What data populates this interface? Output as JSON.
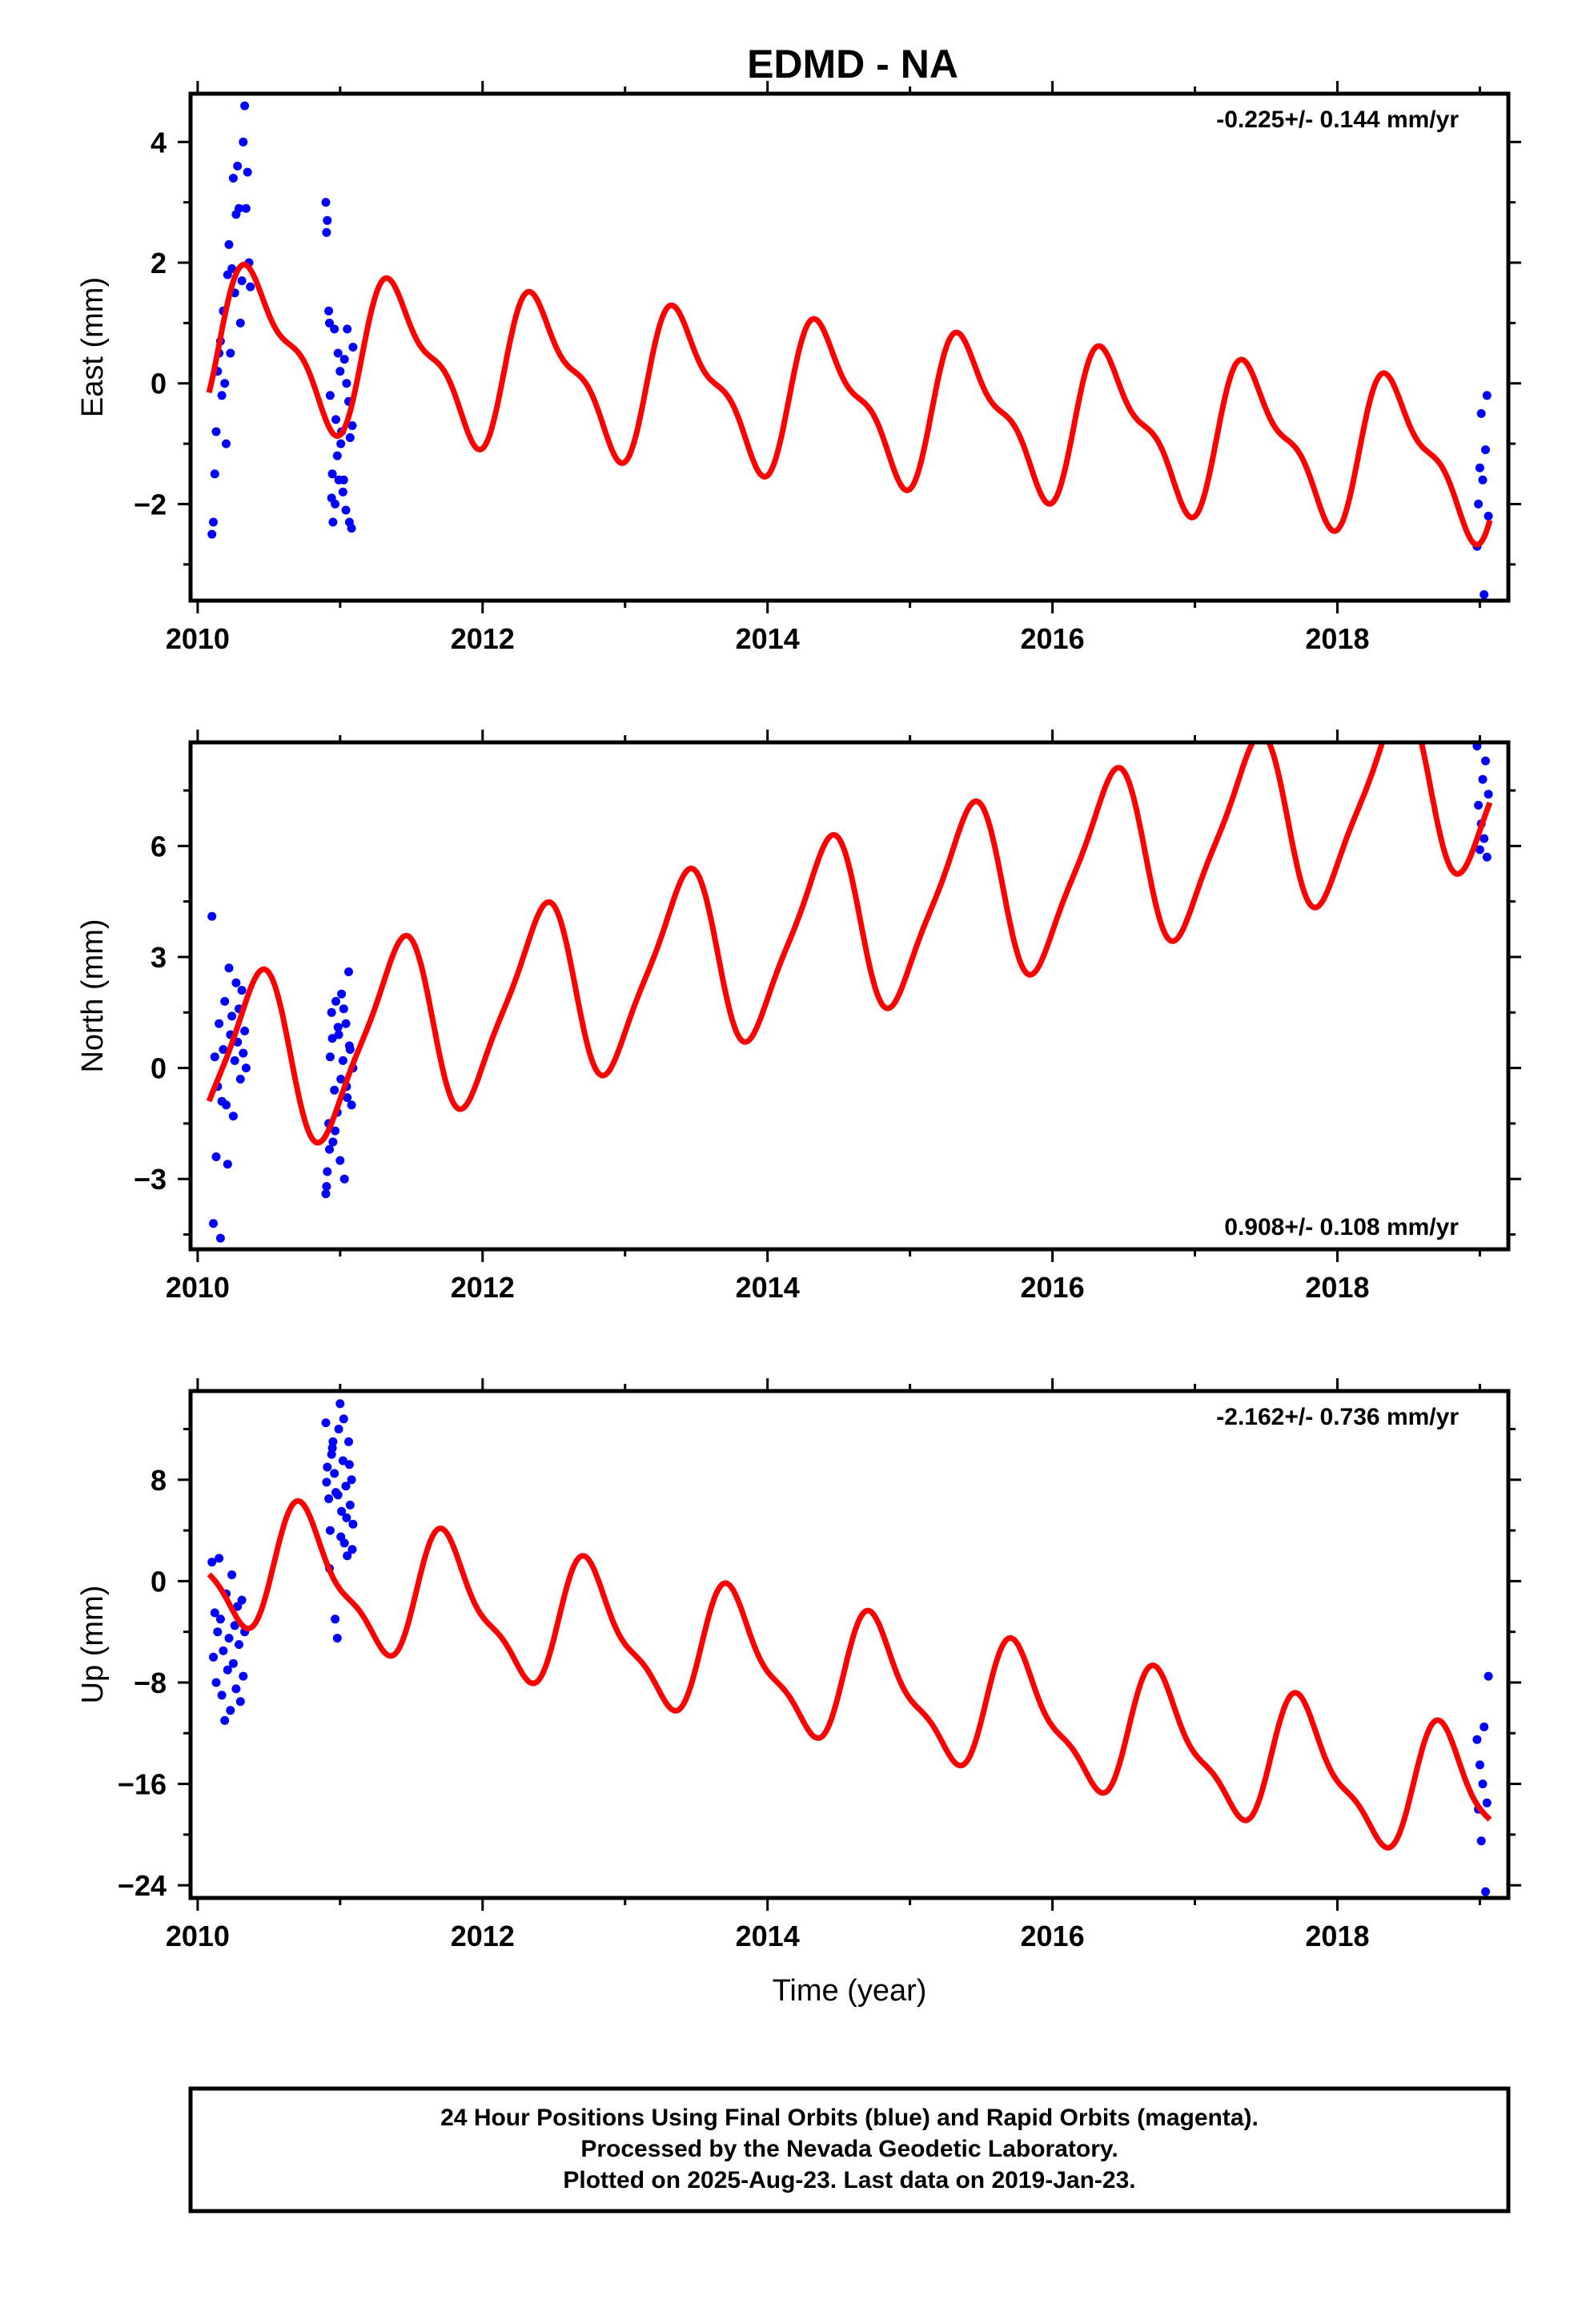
{
  "title": "EDMD - NA",
  "colors": {
    "data_points": "#0000ff",
    "model": "#ff0000",
    "frame": "#000000"
  },
  "chart_data": [
    {
      "type": "scatter",
      "panel": "east",
      "ylabel": "East (mm)",
      "xlabel": "",
      "rate_label": "-0.225+/- 0.144 mm/yr",
      "rate_position": "top-right",
      "xlim": [
        2009.95,
        2019.2
      ],
      "ylim": [
        -3.6,
        4.8
      ],
      "x_ticks": [
        2010,
        2012,
        2014,
        2016,
        2018
      ],
      "x_tick_labels": [
        "2010",
        "2012",
        "2014",
        "2016",
        "2018"
      ],
      "y_ticks": [
        -2,
        0,
        2,
        4
      ],
      "y_tick_labels": [
        "−2",
        "0",
        "2",
        "4"
      ],
      "model": {
        "offset": 0.7,
        "trend_mm_per_yr": -0.225,
        "annual_cos": -0.4,
        "annual_sin": 1.05,
        "semiannual_cos": -0.25,
        "semiannual_sin": 0.35,
        "epoch": 2010.1
      },
      "series": [
        {
          "segment": "2010.08-2010.40",
          "x": [
            2010.1,
            2010.11,
            2010.12,
            2010.13,
            2010.14,
            2010.15,
            2010.16,
            2010.17,
            2010.18,
            2010.19,
            2010.2,
            2010.21,
            2010.22,
            2010.23,
            2010.24,
            2010.25,
            2010.26,
            2010.27,
            2010.28,
            2010.29,
            2010.3,
            2010.31,
            2010.32,
            2010.33,
            2010.34,
            2010.35,
            2010.36,
            2010.37
          ],
          "y": [
            -2.5,
            -2.3,
            -1.5,
            -0.8,
            0.2,
            0.5,
            0.7,
            -0.2,
            1.2,
            0.0,
            -1.0,
            1.8,
            2.3,
            0.5,
            1.9,
            3.4,
            1.5,
            2.8,
            3.6,
            2.9,
            1.0,
            1.7,
            4.0,
            4.6,
            2.9,
            3.5,
            2.0,
            1.6
          ]
        },
        {
          "segment": "2010.85-2011.10",
          "x": [
            2010.9,
            2010.91,
            2010.92,
            2010.93,
            2010.94,
            2010.95,
            2010.96,
            2010.97,
            2010.98,
            2010.99,
            2011.0,
            2011.01,
            2011.02,
            2011.03,
            2011.04,
            2011.05,
            2011.06,
            2011.07,
            2011.08,
            2011.09,
            2010.905,
            2010.925,
            2010.945,
            2010.965,
            2010.985,
            2011.005,
            2011.025,
            2011.045,
            2011.065,
            2011.085
          ],
          "y": [
            3.0,
            2.7,
            1.2,
            -0.2,
            -1.9,
            -2.3,
            0.9,
            -0.6,
            -1.2,
            -1.6,
            0.2,
            -0.8,
            -1.8,
            0.4,
            -2.1,
            0.9,
            -0.3,
            -0.9,
            -2.4,
            0.6,
            2.5,
            1.0,
            -1.5,
            -2.0,
            0.5,
            -1.0,
            -1.6,
            0.0,
            -2.3,
            -0.7
          ]
        },
        {
          "segment": "2018.95-2019.06",
          "x": [
            2018.98,
            2018.99,
            2019.0,
            2019.01,
            2019.02,
            2019.03,
            2019.04,
            2019.05,
            2019.06
          ],
          "y": [
            -2.7,
            -2.0,
            -1.4,
            -0.5,
            -1.6,
            -3.5,
            -1.1,
            -0.2,
            -2.2
          ]
        }
      ]
    },
    {
      "type": "scatter",
      "panel": "north",
      "ylabel": "North (mm)",
      "xlabel": "",
      "rate_label": "0.908+/- 0.108 mm/yr",
      "rate_position": "bottom-right",
      "xlim": [
        2009.95,
        2019.2
      ],
      "ylim": [
        -4.9,
        8.8
      ],
      "x_ticks": [
        2010,
        2012,
        2014,
        2016,
        2018
      ],
      "x_tick_labels": [
        "2010",
        "2012",
        "2014",
        "2016",
        "2018"
      ],
      "y_ticks": [
        -3,
        0,
        3,
        6
      ],
      "y_tick_labels": [
        "−3",
        "0",
        "3",
        "6"
      ],
      "model": {
        "offset": -0.2,
        "trend_mm_per_yr": 0.908,
        "annual_cos": -0.8,
        "annual_sin": 2.2,
        "semiannual_cos": 0.3,
        "semiannual_sin": -0.4,
        "epoch": 2010.1
      },
      "series": [
        {
          "segment": "2010.08-2010.40",
          "x": [
            2010.1,
            2010.11,
            2010.12,
            2010.13,
            2010.14,
            2010.15,
            2010.16,
            2010.17,
            2010.18,
            2010.19,
            2010.2,
            2010.21,
            2010.22,
            2010.23,
            2010.24,
            2010.25,
            2010.26,
            2010.27,
            2010.28,
            2010.29,
            2010.3,
            2010.31,
            2010.32,
            2010.33,
            2010.34
          ],
          "y": [
            4.1,
            -4.2,
            0.3,
            -2.4,
            -0.5,
            1.2,
            -4.6,
            -0.9,
            0.5,
            1.8,
            -1.0,
            -2.6,
            2.7,
            0.9,
            1.4,
            -1.3,
            0.2,
            2.3,
            0.7,
            1.6,
            -0.3,
            2.1,
            0.4,
            1.0,
            0.0
          ]
        },
        {
          "segment": "2010.85-2011.10",
          "x": [
            2010.9,
            2010.91,
            2010.92,
            2010.93,
            2010.94,
            2010.95,
            2010.96,
            2010.97,
            2010.98,
            2010.99,
            2011.0,
            2011.01,
            2011.02,
            2011.03,
            2011.04,
            2011.05,
            2011.06,
            2011.07,
            2011.08,
            2011.09,
            2010.905,
            2010.925,
            2010.945,
            2010.965,
            2010.985,
            2011.005,
            2011.025,
            2011.045,
            2011.065
          ],
          "y": [
            -3.4,
            -2.8,
            -1.5,
            0.3,
            1.5,
            -2.0,
            -0.6,
            1.8,
            -1.2,
            0.9,
            -2.5,
            2.0,
            0.2,
            -3.0,
            1.2,
            -0.8,
            2.6,
            0.5,
            -1.0,
            0.0,
            -3.2,
            -2.2,
            0.8,
            -1.7,
            1.1,
            -0.3,
            1.6,
            -0.5,
            0.6
          ]
        },
        {
          "segment": "2018.95-2019.06",
          "x": [
            2018.98,
            2018.99,
            2019.0,
            2019.01,
            2019.02,
            2019.03,
            2019.04,
            2019.05,
            2019.06
          ],
          "y": [
            8.7,
            7.1,
            5.9,
            6.6,
            7.8,
            6.2,
            8.3,
            5.7,
            7.4
          ]
        }
      ]
    },
    {
      "type": "scatter",
      "panel": "up",
      "ylabel": "Up (mm)",
      "xlabel": "Time (year)",
      "rate_label": "-2.162+/- 0.736 mm/yr",
      "rate_position": "top-right",
      "xlim": [
        2009.95,
        2019.2
      ],
      "ylim": [
        -25.0,
        15.0
      ],
      "x_ticks": [
        2010,
        2012,
        2014,
        2016,
        2018
      ],
      "x_tick_labels": [
        "2010",
        "2012",
        "2014",
        "2016",
        "2018"
      ],
      "y_ticks": [
        -24,
        -16,
        -8,
        0,
        8
      ],
      "y_tick_labels": [
        "−24",
        "−16",
        "−8",
        "0",
        "8"
      ],
      "model": {
        "offset": 1.8,
        "trend_mm_per_yr": -2.162,
        "annual_cos": -2.5,
        "annual_sin": -4.0,
        "semiannual_cos": 1.0,
        "semiannual_sin": 1.2,
        "epoch": 2010.1
      },
      "series": [
        {
          "segment": "2010.08-2010.40",
          "x": [
            2010.1,
            2010.11,
            2010.12,
            2010.13,
            2010.14,
            2010.15,
            2010.16,
            2010.17,
            2010.18,
            2010.19,
            2010.2,
            2010.21,
            2010.22,
            2010.23,
            2010.24,
            2010.25,
            2010.26,
            2010.27,
            2010.28,
            2010.29,
            2010.3,
            2010.31,
            2010.32,
            2010.33
          ],
          "y": [
            1.5,
            -6.0,
            -2.5,
            -8.0,
            -4.0,
            1.8,
            -3.0,
            -9.0,
            -5.5,
            -11.0,
            -1.0,
            -7.0,
            -4.5,
            -10.2,
            0.5,
            -6.5,
            -3.5,
            -8.5,
            -2.0,
            -5.0,
            -9.5,
            -1.5,
            -7.5,
            -4.0
          ]
        },
        {
          "segment": "2010.85-2011.10",
          "x": [
            2010.9,
            2010.91,
            2010.92,
            2010.93,
            2010.94,
            2010.95,
            2010.96,
            2010.97,
            2010.98,
            2010.99,
            2011.0,
            2011.01,
            2011.02,
            2011.03,
            2011.04,
            2011.05,
            2011.06,
            2011.07,
            2011.08,
            2011.09,
            2010.905,
            2010.925,
            2010.945,
            2010.965,
            2010.985,
            2011.005,
            2011.025,
            2011.045,
            2011.065,
            2011.085
          ],
          "y": [
            12.5,
            9.0,
            6.5,
            4.0,
            10.0,
            11.0,
            8.5,
            7.0,
            -4.5,
            12.0,
            14.0,
            5.5,
            9.5,
            3.0,
            7.5,
            2.0,
            11.0,
            6.0,
            8.0,
            4.5,
            7.8,
            1.0,
            10.5,
            -3.0,
            6.8,
            3.5,
            12.8,
            5.0,
            9.2,
            2.5
          ]
        },
        {
          "segment": "2018.95-2019.06",
          "x": [
            2018.98,
            2018.99,
            2019.0,
            2019.01,
            2019.02,
            2019.03,
            2019.04,
            2019.05,
            2019.06
          ],
          "y": [
            -12.5,
            -18.0,
            -14.5,
            -20.5,
            -16.0,
            -11.5,
            -24.5,
            -17.5,
            -7.5
          ]
        }
      ]
    }
  ],
  "footer": {
    "line1": "24 Hour Positions Using Final Orbits (blue) and Rapid Orbits (magenta).",
    "line2": "Processed by the Nevada Geodetic Laboratory.",
    "line3": "Plotted on 2025-Aug-23. Last data on 2019-Jan-23."
  }
}
